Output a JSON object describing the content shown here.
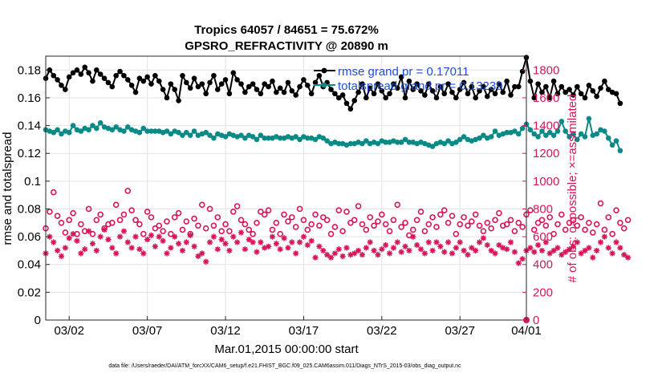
{
  "chart_data": {
    "type": "line",
    "title_line1": "Tropics 64057 / 84651 = 75.672%",
    "title_line2": "GPSRO_REFRACTIVITY @ 20890 m",
    "xlabel": "Mar.01,2015 00:00:00 start",
    "ylabel_left": "rmse and totalspread",
    "ylabel_right": "# of obs: o=possible; ×=assimilated",
    "footer": "data file: /Users/raeder/DAI/ATM_forcXX/CAM6_setup/f.e21.FHIST_BGC.f09_025.CAM6assim.011/Diags_NTrS_2015-03/obs_diag_output.nc",
    "xlim": [
      0.5,
      31.25
    ],
    "ylim_left": [
      0,
      0.19
    ],
    "ylim_right": [
      0,
      1900
    ],
    "x_ticks": [
      2,
      7,
      12,
      17,
      22,
      27,
      32
    ],
    "x_tick_labels": [
      "03/02",
      "03/07",
      "03/12",
      "03/17",
      "03/22",
      "03/27",
      "04/01"
    ],
    "y_left_ticks": [
      0,
      0.02,
      0.04,
      0.06,
      0.08,
      0.1,
      0.12,
      0.14,
      0.16,
      0.18
    ],
    "y_left_tick_labels": [
      "0",
      "0.02",
      "0.04",
      "0.06",
      "0.08",
      "0.1",
      "0.12",
      "0.14",
      "0.16",
      "0.18"
    ],
    "y_right_ticks": [
      0,
      200,
      400,
      600,
      800,
      1000,
      1200,
      1400,
      1600,
      1800
    ],
    "y_right_tick_labels": [
      "0",
      "200",
      "400",
      "600",
      "800",
      "1000",
      "1200",
      "1400",
      "1600",
      "1800"
    ],
    "grid": true,
    "legend_position": "top-right",
    "x_start": 0.5,
    "x_step": 0.25,
    "colors": {
      "rmse": "#000000",
      "spread": "#0a8a86",
      "obs": "#d8145a",
      "legend_text": "#1f4fd6"
    },
    "series": [
      {
        "name": "rmse grand pr = 0.17011",
        "axis": "left",
        "marker": "filled-circle",
        "values": [
          0.174,
          0.18,
          0.176,
          0.173,
          0.169,
          0.166,
          0.175,
          0.178,
          0.18,
          0.177,
          0.182,
          0.178,
          0.172,
          0.18,
          0.177,
          0.174,
          0.171,
          0.168,
          0.176,
          0.179,
          0.176,
          0.173,
          0.169,
          0.164,
          0.174,
          0.172,
          0.175,
          0.17,
          0.176,
          0.172,
          0.166,
          0.16,
          0.17,
          0.166,
          0.158,
          0.176,
          0.171,
          0.167,
          0.174,
          0.168,
          0.17,
          0.163,
          0.171,
          0.176,
          0.166,
          0.17,
          0.173,
          0.163,
          0.178,
          0.173,
          0.17,
          0.164,
          0.168,
          0.17,
          0.166,
          0.163,
          0.17,
          0.168,
          0.172,
          0.164,
          0.167,
          0.164,
          0.171,
          0.165,
          0.162,
          0.168,
          0.173,
          0.169,
          0.163,
          0.171,
          0.176,
          0.168,
          0.171,
          0.166,
          0.163,
          0.16,
          0.162,
          0.156,
          0.152,
          0.158,
          0.164,
          0.17,
          0.16,
          0.167,
          0.163,
          0.17,
          0.165,
          0.16,
          0.163,
          0.17,
          0.167,
          0.175,
          0.16,
          0.172,
          0.166,
          0.17,
          0.165,
          0.162,
          0.17,
          0.165,
          0.16,
          0.168,
          0.163,
          0.17,
          0.164,
          0.16,
          0.166,
          0.171,
          0.163,
          0.168,
          0.16,
          0.165,
          0.168,
          0.161,
          0.166,
          0.163,
          0.17,
          0.164,
          0.172,
          0.162,
          0.168,
          0.168,
          0.179,
          0.189,
          0.172,
          0.16,
          0.17,
          0.164,
          0.168,
          0.16,
          0.172,
          0.163,
          0.168,
          0.164,
          0.166,
          0.162,
          0.168,
          0.163,
          0.16,
          0.169,
          0.165,
          0.161,
          0.167,
          0.172,
          0.166,
          0.164,
          0.163,
          0.156
        ]
      },
      {
        "name": "totalspread grand pr = 0.13239",
        "axis": "left",
        "marker": "filled-circle",
        "values": [
          0.137,
          0.136,
          0.135,
          0.137,
          0.134,
          0.136,
          0.135,
          0.14,
          0.137,
          0.136,
          0.138,
          0.137,
          0.14,
          0.138,
          0.142,
          0.139,
          0.138,
          0.137,
          0.139,
          0.137,
          0.136,
          0.139,
          0.137,
          0.136,
          0.135,
          0.138,
          0.136,
          0.136,
          0.136,
          0.136,
          0.135,
          0.136,
          0.134,
          0.136,
          0.135,
          0.133,
          0.135,
          0.133,
          0.136,
          0.133,
          0.134,
          0.135,
          0.133,
          0.131,
          0.134,
          0.133,
          0.132,
          0.134,
          0.133,
          0.132,
          0.133,
          0.131,
          0.133,
          0.132,
          0.13,
          0.133,
          0.131,
          0.131,
          0.131,
          0.132,
          0.131,
          0.131,
          0.132,
          0.131,
          0.132,
          0.13,
          0.132,
          0.131,
          0.131,
          0.13,
          0.132,
          0.131,
          0.129,
          0.127,
          0.128,
          0.127,
          0.127,
          0.126,
          0.127,
          0.127,
          0.128,
          0.127,
          0.129,
          0.127,
          0.128,
          0.127,
          0.129,
          0.128,
          0.128,
          0.129,
          0.128,
          0.128,
          0.13,
          0.128,
          0.128,
          0.127,
          0.128,
          0.127,
          0.126,
          0.125,
          0.127,
          0.128,
          0.127,
          0.129,
          0.127,
          0.128,
          0.13,
          0.132,
          0.13,
          0.129,
          0.13,
          0.131,
          0.133,
          0.131,
          0.132,
          0.136,
          0.133,
          0.134,
          0.135,
          0.135,
          0.136,
          0.134,
          0.138,
          0.141,
          0.137,
          0.134,
          0.132,
          0.136,
          0.133,
          0.135,
          0.133,
          0.136,
          0.143,
          0.136,
          0.132,
          0.134,
          0.13,
          0.134,
          0.132,
          0.145,
          0.133,
          0.134,
          0.137,
          0.136,
          0.131,
          0.126,
          0.129,
          0.122
        ]
      },
      {
        "name": "possible",
        "axis": "right",
        "marker": "open-circle",
        "values": [
          660,
          780,
          920,
          750,
          700,
          630,
          720,
          770,
          620,
          690,
          640,
          800,
          620,
          720,
          760,
          660,
          690,
          700,
          830,
          720,
          760,
          930,
          790,
          720,
          690,
          620,
          780,
          740,
          660,
          680,
          640,
          710,
          620,
          740,
          770,
          650,
          710,
          620,
          730,
          680,
          830,
          660,
          800,
          680,
          740,
          640,
          690,
          640,
          780,
          820,
          720,
          690,
          650,
          620,
          700,
          780,
          760,
          790,
          650,
          700,
          620,
          760,
          710,
          740,
          670,
          800,
          720,
          650,
          690,
          760,
          680,
          740,
          720,
          620,
          670,
          790,
          640,
          780,
          700,
          720,
          820,
          690,
          650,
          740,
          680,
          710,
          760,
          690,
          640,
          720,
          830,
          670,
          700,
          610,
          650,
          720,
          780,
          640,
          690,
          740,
          670,
          760,
          790,
          700,
          750,
          620,
          690,
          740,
          680,
          710,
          760,
          680,
          640,
          700,
          660,
          720,
          770,
          680,
          690,
          720,
          640,
          700,
          670,
          760,
          790,
          650,
          700,
          720,
          680,
          740,
          620,
          690,
          760,
          650,
          700,
          720,
          680,
          740,
          650,
          700,
          630,
          690,
          840,
          650,
          740,
          620,
          790,
          700,
          660,
          720
        ]
      },
      {
        "name": "assimilated",
        "axis": "right",
        "marker": "asterisk",
        "values": [
          480,
          600,
          560,
          500,
          460,
          520,
          590,
          620,
          570,
          480,
          510,
          640,
          550,
          500,
          600,
          650,
          580,
          520,
          480,
          600,
          640,
          560,
          520,
          600,
          510,
          480,
          580,
          610,
          530,
          600,
          570,
          480,
          520,
          600,
          550,
          500,
          560,
          610,
          530,
          460,
          480,
          420,
          560,
          600,
          510,
          580,
          550,
          500,
          600,
          560,
          630,
          510,
          580,
          560,
          490,
          560,
          520,
          530,
          600,
          550,
          510,
          590,
          520,
          560,
          480,
          560,
          600,
          540,
          570,
          450,
          530,
          500,
          470,
          450,
          480,
          510,
          460,
          520,
          470,
          480,
          500,
          470,
          520,
          560,
          500,
          470,
          510,
          540,
          480,
          520,
          560,
          490,
          530,
          500,
          600,
          540,
          510,
          480,
          560,
          500,
          560,
          530,
          490,
          560,
          480,
          520,
          560,
          500,
          470,
          520,
          500,
          560,
          590,
          540,
          500,
          480,
          540,
          520,
          510,
          560,
          490,
          410,
          440,
          500,
          520,
          490,
          540,
          500,
          560,
          480,
          500,
          520,
          470,
          490,
          510,
          530,
          560,
          480,
          500,
          520,
          450,
          500,
          560,
          600,
          520,
          480,
          560,
          520,
          470,
          450
        ]
      }
    ]
  }
}
